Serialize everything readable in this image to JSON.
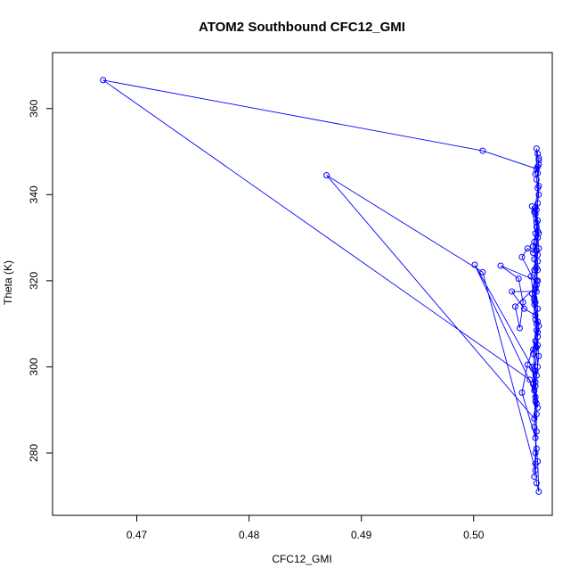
{
  "chart_data": {
    "type": "line",
    "title": "ATOM2 Southbound CFC12_GMI",
    "xlabel": "CFC12_GMI",
    "ylabel": "Theta (K)",
    "xlim": [
      0.4625,
      0.507
    ],
    "ylim": [
      265.5,
      373.0
    ],
    "x_ticks": [
      0.47,
      0.48,
      0.49,
      0.5
    ],
    "x_tick_labels": [
      "0.47",
      "0.48",
      "0.49",
      "0.50"
    ],
    "y_ticks": [
      280,
      300,
      320,
      340,
      360
    ],
    "y_tick_labels": [
      "280",
      "300",
      "320",
      "340",
      "360"
    ],
    "series_color": "#0000ff",
    "series": [
      {
        "marker": "open-circle",
        "points": [
          [
            0.5058,
            348.0
          ],
          [
            0.5057,
            346.5
          ],
          [
            0.5055,
            344.8
          ],
          [
            0.5057,
            349.5
          ],
          [
            0.5056,
            350.7
          ],
          [
            0.5056,
            346.0
          ],
          [
            0.5008,
            350.2
          ],
          [
            0.467,
            366.6
          ],
          [
            0.505,
            297.0
          ],
          [
            0.5056,
            291.5
          ],
          [
            0.5055,
            280.0
          ],
          [
            0.5054,
            274.5
          ],
          [
            0.5056,
            285.0
          ],
          [
            0.5053,
            296.0
          ],
          [
            0.5057,
            305.0
          ],
          [
            0.5055,
            311.0
          ],
          [
            0.5052,
            317.0
          ],
          [
            0.5056,
            323.0
          ],
          [
            0.5054,
            329.0
          ],
          [
            0.5057,
            334.0
          ],
          [
            0.5052,
            337.3
          ],
          [
            0.5055,
            331.0
          ],
          [
            0.5057,
            326.0
          ],
          [
            0.5051,
            321.0
          ],
          [
            0.5054,
            315.5
          ],
          [
            0.5056,
            310.0
          ],
          [
            0.5053,
            304.0
          ],
          [
            0.5055,
            299.0
          ],
          [
            0.5054,
            294.5
          ],
          [
            0.5001,
            323.7
          ],
          [
            0.5052,
            300.0
          ],
          [
            0.5055,
            293.0
          ],
          [
            0.5054,
            288.0
          ],
          [
            0.4869,
            344.5
          ],
          [
            0.5008,
            322.0
          ],
          [
            0.5055,
            276.0
          ],
          [
            0.5056,
            289.0
          ],
          [
            0.5053,
            299.5
          ],
          [
            0.5057,
            308.0
          ],
          [
            0.5054,
            316.0
          ],
          [
            0.5056,
            320.0
          ],
          [
            0.5024,
            323.5
          ],
          [
            0.504,
            320.5
          ],
          [
            0.5044,
            315.0
          ],
          [
            0.5041,
            309.0
          ],
          [
            0.5037,
            314.0
          ],
          [
            0.5055,
            318.5
          ],
          [
            0.5057,
            324.5
          ],
          [
            0.5053,
            328.0
          ],
          [
            0.5056,
            332.5
          ],
          [
            0.5054,
            336.0
          ],
          [
            0.5057,
            338.0
          ],
          [
            0.5056,
            333.5
          ],
          [
            0.5058,
            327.5
          ],
          [
            0.5054,
            322.5
          ],
          [
            0.5056,
            317.5
          ],
          [
            0.5034,
            317.5
          ],
          [
            0.5045,
            313.5
          ],
          [
            0.5055,
            312.0
          ],
          [
            0.5057,
            307.0
          ],
          [
            0.5053,
            303.0
          ],
          [
            0.5056,
            298.0
          ],
          [
            0.5055,
            292.0
          ],
          [
            0.5054,
            286.0
          ],
          [
            0.5056,
            281.0
          ],
          [
            0.5055,
            277.5
          ],
          [
            0.5056,
            273.0
          ],
          [
            0.5058,
            271.0
          ],
          [
            0.5057,
            278.0
          ],
          [
            0.5055,
            283.5
          ],
          [
            0.5043,
            294.0
          ],
          [
            0.5048,
            300.5
          ],
          [
            0.5055,
            306.0
          ],
          [
            0.5057,
            310.5
          ],
          [
            0.5054,
            314.5
          ],
          [
            0.5056,
            319.0
          ],
          [
            0.5043,
            325.5
          ],
          [
            0.5048,
            327.5
          ],
          [
            0.5053,
            326.5
          ],
          [
            0.5057,
            330.0
          ],
          [
            0.5055,
            335.5
          ],
          [
            0.5058,
            340.0
          ],
          [
            0.5056,
            343.5
          ],
          [
            0.5058,
            347.0
          ],
          [
            0.5057,
            341.5
          ],
          [
            0.5055,
            337.0
          ],
          [
            0.5057,
            331.5
          ],
          [
            0.5054,
            325.0
          ],
          [
            0.5057,
            320.0
          ],
          [
            0.5055,
            315.0
          ],
          [
            0.5058,
            309.5
          ],
          [
            0.5056,
            304.5
          ],
          [
            0.5057,
            300.0
          ],
          [
            0.5055,
            295.5
          ],
          [
            0.5057,
            290.5
          ],
          [
            0.5055,
            296.5
          ],
          [
            0.5058,
            302.5
          ],
          [
            0.5056,
            308.5
          ],
          [
            0.5057,
            313.5
          ],
          [
            0.5055,
            318.0
          ],
          [
            0.5057,
            322.5
          ],
          [
            0.5056,
            327.0
          ],
          [
            0.5058,
            331.0
          ],
          [
            0.5056,
            336.5
          ],
          [
            0.5058,
            342.0
          ],
          [
            0.5057,
            345.0
          ],
          [
            0.5058,
            348.5
          ]
        ]
      }
    ]
  }
}
